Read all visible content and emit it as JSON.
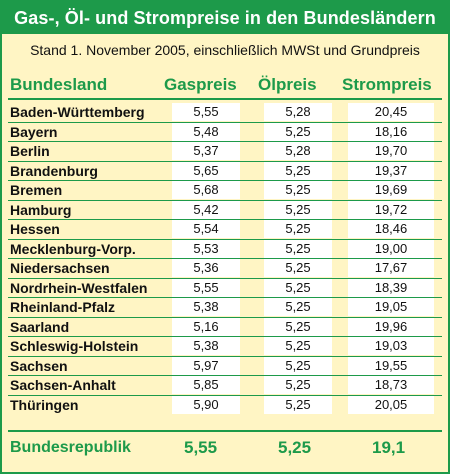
{
  "title": "Gas-, Öl- und Strompreise in den Bundesländern",
  "subtitle": "Stand 1. November 2005, einschließlich MWSt und Grundpreis",
  "headers": {
    "name": "Bundesland",
    "gas": "Gaspreis",
    "oil": "Ölpreis",
    "strom": "Strompreis"
  },
  "rows": [
    {
      "name": "Baden-Württemberg",
      "gas": "5,55",
      "oil": "5,28",
      "strom": "20,45"
    },
    {
      "name": "Bayern",
      "gas": "5,48",
      "oil": "5,25",
      "strom": "18,16"
    },
    {
      "name": "Berlin",
      "gas": "5,37",
      "oil": "5,28",
      "strom": "19,70"
    },
    {
      "name": "Brandenburg",
      "gas": "5,65",
      "oil": "5,25",
      "strom": "19,37"
    },
    {
      "name": "Bremen",
      "gas": "5,68",
      "oil": "5,25",
      "strom": "19,69"
    },
    {
      "name": "Hamburg",
      "gas": "5,42",
      "oil": "5,25",
      "strom": "19,72"
    },
    {
      "name": "Hessen",
      "gas": "5,54",
      "oil": "5,25",
      "strom": "18,46"
    },
    {
      "name": "Mecklenburg-Vorp.",
      "gas": "5,53",
      "oil": "5,25",
      "strom": "19,00"
    },
    {
      "name": "Niedersachsen",
      "gas": "5,36",
      "oil": "5,25",
      "strom": "17,67"
    },
    {
      "name": "Nordrhein-Westfalen",
      "gas": "5,55",
      "oil": "5,25",
      "strom": "18,39"
    },
    {
      "name": "Rheinland-Pfalz",
      "gas": "5,38",
      "oil": "5,25",
      "strom": "19,05"
    },
    {
      "name": "Saarland",
      "gas": "5,16",
      "oil": "5,25",
      "strom": "19,96"
    },
    {
      "name": "Schleswig-Holstein",
      "gas": "5,38",
      "oil": "5,25",
      "strom": "19,03"
    },
    {
      "name": "Sachsen",
      "gas": "5,97",
      "oil": "5,25",
      "strom": "19,55"
    },
    {
      "name": "Sachsen-Anhalt",
      "gas": "5,85",
      "oil": "5,25",
      "strom": "18,73"
    },
    {
      "name": "Thüringen",
      "gas": "5,90",
      "oil": "5,25",
      "strom": "20,05"
    }
  ],
  "total": {
    "name": "Bundesrepublik",
    "gas": "5,55",
    "oil": "5,25",
    "strom": "19,1"
  },
  "colors": {
    "accent": "#1d9a4a",
    "background": "#fff5c4",
    "cell": "#ffffff"
  }
}
